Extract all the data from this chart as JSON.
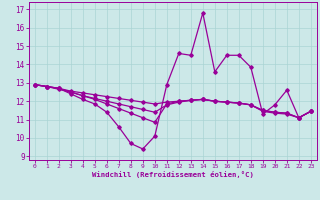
{
  "xlabel": "Windchill (Refroidissement éolien,°C)",
  "bg_color": "#cce8e8",
  "line_color": "#990099",
  "grid_color": "#aad4d4",
  "xlim": [
    -0.5,
    23.5
  ],
  "ylim": [
    8.8,
    17.4
  ],
  "yticks": [
    9,
    10,
    11,
    12,
    13,
    14,
    15,
    16,
    17
  ],
  "xticks": [
    0,
    1,
    2,
    3,
    4,
    5,
    6,
    7,
    8,
    9,
    10,
    11,
    12,
    13,
    14,
    15,
    16,
    17,
    18,
    19,
    20,
    21,
    22,
    23
  ],
  "series": {
    "line_flat1": {
      "x": [
        0,
        1,
        2,
        3,
        4,
        5,
        6,
        7,
        8,
        9,
        10,
        11,
        12,
        13,
        14,
        15,
        16,
        17,
        18,
        19,
        20,
        21,
        22,
        23
      ],
      "y": [
        12.9,
        12.8,
        12.7,
        12.55,
        12.45,
        12.35,
        12.25,
        12.15,
        12.05,
        11.95,
        11.85,
        11.95,
        12.0,
        12.05,
        12.1,
        12.0,
        11.95,
        11.9,
        11.8,
        11.5,
        11.4,
        11.35,
        11.1,
        11.45
      ]
    },
    "line_flat2": {
      "x": [
        0,
        1,
        2,
        3,
        4,
        5,
        6,
        7,
        8,
        9,
        10,
        11,
        12,
        13,
        14,
        15,
        16,
        17,
        18,
        19,
        20,
        21,
        22,
        23
      ],
      "y": [
        12.9,
        12.8,
        12.7,
        12.5,
        12.3,
        12.1,
        11.85,
        11.6,
        11.35,
        11.1,
        10.85,
        11.85,
        12.0,
        12.05,
        12.1,
        12.0,
        11.95,
        11.9,
        11.8,
        11.45,
        11.35,
        11.3,
        11.1,
        11.45
      ]
    },
    "line_flat3": {
      "x": [
        0,
        1,
        2,
        3,
        4,
        5,
        6,
        7,
        8,
        9,
        10,
        11,
        12,
        13,
        14,
        15,
        16,
        17,
        18,
        19,
        20,
        21,
        22,
        23
      ],
      "y": [
        12.9,
        12.8,
        12.65,
        12.5,
        12.3,
        12.15,
        12.0,
        11.85,
        11.7,
        11.55,
        11.4,
        11.8,
        11.95,
        12.05,
        12.1,
        12.0,
        11.95,
        11.9,
        11.8,
        11.5,
        11.4,
        11.35,
        11.1,
        11.45
      ]
    },
    "line_drama": {
      "x": [
        0,
        1,
        2,
        3,
        4,
        5,
        6,
        7,
        8,
        9,
        10,
        11,
        12,
        13,
        14,
        15,
        16,
        17,
        18,
        19,
        20,
        21,
        22,
        23
      ],
      "y": [
        12.9,
        12.8,
        12.7,
        12.4,
        12.1,
        11.85,
        11.4,
        10.6,
        9.7,
        9.4,
        10.1,
        12.9,
        14.6,
        14.5,
        16.8,
        13.6,
        14.5,
        14.5,
        13.85,
        11.3,
        11.8,
        12.6,
        11.1,
        11.45
      ]
    }
  }
}
